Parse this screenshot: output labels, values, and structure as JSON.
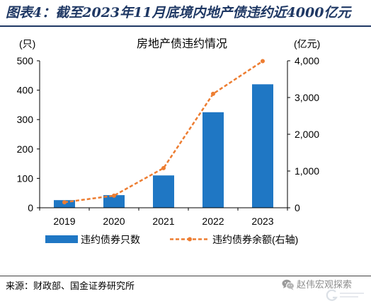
{
  "figure": {
    "title": "图表4：截至2023年11月底境内地产债违约近4000亿元",
    "source": "来源：财政部、国金证券研究所",
    "watermark": "赵伟宏观探索",
    "watermark_icon": "wechat-icon",
    "logo_icon": "firm-logo-icon",
    "colors": {
      "title": "#1F3864",
      "bar": "#1F77C4",
      "line": "#ED7D31",
      "watermark": "#8C8C8C"
    }
  },
  "chart_data": {
    "type": "bar",
    "title": "房地产债违约情况",
    "categories": [
      "2019",
      "2020",
      "2021",
      "2022",
      "2023"
    ],
    "series": [
      {
        "name": "违约债券只数",
        "type": "bar",
        "axis": "left",
        "values": [
          26,
          43,
          110,
          325,
          420
        ]
      },
      {
        "name": "违约债券余额(右轴)",
        "type": "line",
        "axis": "right",
        "style": "dashed",
        "marker": "dot",
        "values": [
          150,
          330,
          1080,
          3100,
          3990
        ]
      }
    ],
    "ylabel": "(只)",
    "ylabel_right": "(亿元)",
    "ylim": [
      0,
      500
    ],
    "ylim_right": [
      0,
      4000
    ],
    "yticks": [
      "0",
      "100",
      "200",
      "300",
      "400",
      "500"
    ],
    "yticks_right": [
      "0",
      "1,000",
      "2,000",
      "3,000",
      "4,000"
    ],
    "grid": false,
    "legend": "bottom"
  }
}
